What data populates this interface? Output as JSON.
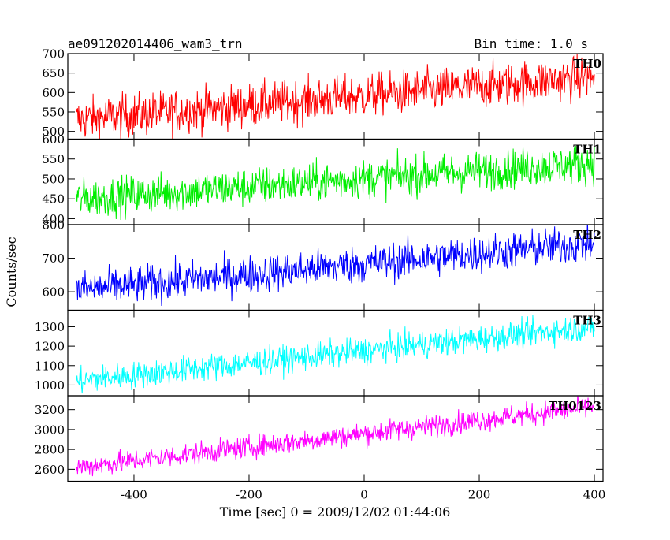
{
  "header": {
    "title": "ae091202014406_wam3_trn",
    "bin_time": "Bin time: 1.0 s"
  },
  "chart_data": {
    "type": "line",
    "xlabel": "Time [sec] 0 = 2009/12/02 01:44:06",
    "ylabel": "Counts/sec",
    "xlim": [
      -515,
      415
    ],
    "x_ticks": [
      -400,
      -200,
      0,
      200,
      400
    ],
    "x_step": 1,
    "x_start": -500,
    "x_end": 400,
    "grid": false,
    "panels": [
      {
        "name": "TH0",
        "color": "#ff0000",
        "ylim": [
          480,
          700
        ],
        "y_ticks": [
          500,
          550,
          600,
          650,
          700
        ],
        "trend": {
          "start": 530,
          "end": 640
        },
        "noise": 40
      },
      {
        "name": "TH1",
        "color": "#00ee00",
        "ylim": [
          385,
          600
        ],
        "y_ticks": [
          400,
          450,
          500,
          550,
          600
        ],
        "trend": {
          "start": 450,
          "end": 540
        },
        "noise": 35
      },
      {
        "name": "TH2",
        "color": "#0000ff",
        "ylim": [
          545,
          800
        ],
        "y_ticks": [
          600,
          700,
          800
        ],
        "trend": {
          "start": 605,
          "end": 745
        },
        "noise": 40
      },
      {
        "name": "TH3",
        "color": "#00ffff",
        "ylim": [
          945,
          1385
        ],
        "y_ticks": [
          1000,
          1100,
          1200,
          1300
        ],
        "trend": {
          "start": 1020,
          "end": 1300
        },
        "noise": 50
      },
      {
        "name": "TH0123",
        "color": "#ff00ff",
        "ylim": [
          2480,
          3340
        ],
        "y_ticks": [
          2600,
          2800,
          3000,
          3200
        ],
        "trend": {
          "start": 2620,
          "end": 3230
        },
        "noise": 80
      }
    ]
  }
}
